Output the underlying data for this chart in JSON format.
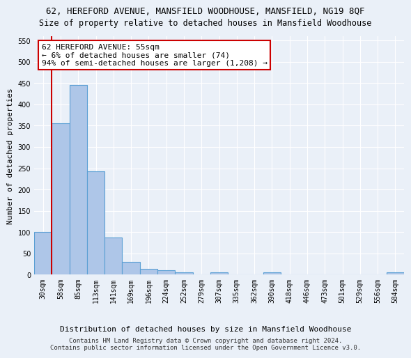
{
  "title_line1": "62, HEREFORD AVENUE, MANSFIELD WOODHOUSE, MANSFIELD, NG19 8QF",
  "title_line2": "Size of property relative to detached houses in Mansfield Woodhouse",
  "xlabel": "Distribution of detached houses by size in Mansfield Woodhouse",
  "ylabel": "Number of detached properties",
  "footnote": "Contains HM Land Registry data © Crown copyright and database right 2024.\nContains public sector information licensed under the Open Government Licence v3.0.",
  "bar_labels": [
    "30sqm",
    "58sqm",
    "85sqm",
    "113sqm",
    "141sqm",
    "169sqm",
    "196sqm",
    "224sqm",
    "252sqm",
    "279sqm",
    "307sqm",
    "335sqm",
    "362sqm",
    "390sqm",
    "418sqm",
    "446sqm",
    "473sqm",
    "501sqm",
    "529sqm",
    "556sqm",
    "584sqm"
  ],
  "bar_values": [
    100,
    355,
    445,
    243,
    87,
    30,
    14,
    10,
    6,
    0,
    6,
    0,
    0,
    5,
    0,
    0,
    0,
    0,
    0,
    0,
    5
  ],
  "bar_color": "#aec6e8",
  "bar_edge_color": "#5a9fd4",
  "annotation_text": "62 HEREFORD AVENUE: 55sqm\n← 6% of detached houses are smaller (74)\n94% of semi-detached houses are larger (1,208) →",
  "annotation_box_color": "#ffffff",
  "annotation_box_edge_color": "#cc0000",
  "property_line_color": "#cc0000",
  "ylim": [
    0,
    560
  ],
  "yticks": [
    0,
    50,
    100,
    150,
    200,
    250,
    300,
    350,
    400,
    450,
    500,
    550
  ],
  "bg_color": "#eaf0f8",
  "plot_bg_color": "#eaf0f8",
  "grid_color": "#ffffff",
  "title_fontsize": 9,
  "subtitle_fontsize": 8.5,
  "axis_label_fontsize": 8,
  "tick_fontsize": 7,
  "annotation_fontsize": 8,
  "footnote_fontsize": 6.5
}
